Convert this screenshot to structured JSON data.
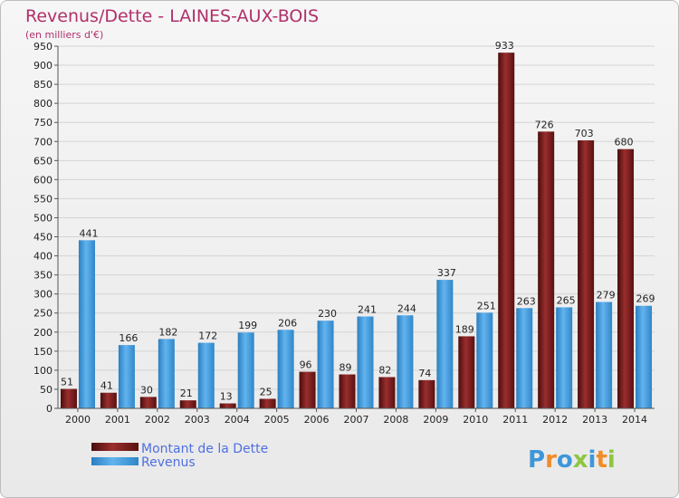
{
  "chart_data": {
    "type": "bar",
    "title": "Revenus/Dette - LAINES-AUX-BOIS",
    "subtitle": "(en milliers d'€)",
    "categories": [
      "2000",
      "2001",
      "2002",
      "2003",
      "2004",
      "2005",
      "2006",
      "2007",
      "2008",
      "2009",
      "2010",
      "2011",
      "2012",
      "2013",
      "2014"
    ],
    "series": [
      {
        "name": "Montant de la Dette",
        "color": "#7a1c1c",
        "values": [
          51,
          41,
          30,
          21,
          13,
          25,
          96,
          89,
          82,
          74,
          189,
          933,
          726,
          703,
          680
        ]
      },
      {
        "name": "Revenus",
        "color": "#3d97d9",
        "values": [
          441,
          166,
          182,
          172,
          199,
          206,
          230,
          241,
          244,
          337,
          251,
          263,
          265,
          279,
          269
        ]
      }
    ],
    "ylim": [
      0,
      950
    ],
    "ytick_step": 50,
    "grid": true,
    "legend": "bottom-left"
  },
  "logo": {
    "text": "Proxiti",
    "letters": [
      "P",
      "r",
      "o",
      "x",
      "i",
      "t",
      "i"
    ],
    "colors": [
      "#3d97d9",
      "#f28c28",
      "#3d97d9",
      "#8cc63f",
      "#3d97d9",
      "#f28c28",
      "#8cc63f"
    ]
  }
}
